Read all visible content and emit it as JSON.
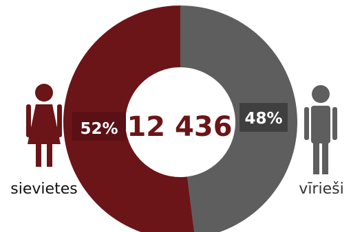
{
  "chart_data": {
    "type": "pie",
    "total": "12 436",
    "slices": [
      {
        "label": "sievietes",
        "percent_label": "52%",
        "value": 52,
        "color": "#6b1518"
      },
      {
        "label": "vīrieši",
        "percent_label": "48%",
        "value": 48,
        "color": "#5e5e5e"
      }
    ]
  },
  "colors": {
    "female": "#6b1518",
    "male": "#5e5e5e",
    "total_text": "#6b1518",
    "label_box_female": "#5a1014",
    "label_box_male": "#3f3f3f"
  },
  "icons": {
    "female": "female-person-icon",
    "male": "male-person-icon"
  }
}
